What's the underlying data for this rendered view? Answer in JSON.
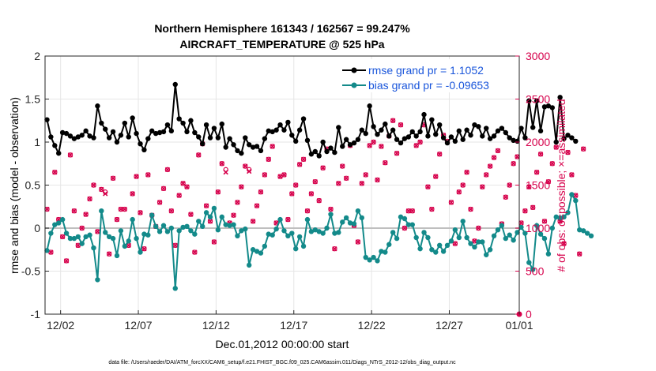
{
  "chart_data": {
    "type": "line",
    "title_line1": "Northern Hemisphere 161343 / 162567 = 99.247%",
    "title_line2": "AIRCRAFT_TEMPERATURE @ 525 hPa",
    "xlabel": "Dec.01,2012 00:00:00 start",
    "ylabel_left": "rmse and bias (model - observation)",
    "ylabel_right": "# of obs: o=possible; ×=assimilated",
    "ylim_left": [
      -1,
      2
    ],
    "ylim_right": [
      0,
      3000
    ],
    "xlim_days": [
      0.5,
      31.0
    ],
    "y_ticks_left": [
      "-1",
      "-0.5",
      "0",
      "0.5",
      "1",
      "1.5",
      "2"
    ],
    "y_ticks_right": [
      "0",
      "500",
      "1000",
      "1500",
      "2000",
      "2500",
      "3000"
    ],
    "x_ticks": [
      {
        "day": 1.5,
        "label": "12/02"
      },
      {
        "day": 6.5,
        "label": "12/07"
      },
      {
        "day": 11.5,
        "label": "12/12"
      },
      {
        "day": 16.5,
        "label": "12/17"
      },
      {
        "day": 21.5,
        "label": "12/22"
      },
      {
        "day": 26.5,
        "label": "12/27"
      },
      {
        "day": 31.0,
        "label": "01/01"
      }
    ],
    "time_step_days": 0.25,
    "series": [
      {
        "name": "rmse",
        "legend": "rmse grand pr = 1.1052",
        "color": "#000000",
        "values": [
          1.26,
          1.06,
          0.96,
          0.87,
          1.11,
          1.1,
          1.07,
          1.04,
          1.06,
          1.08,
          1.13,
          1.07,
          1.05,
          1.42,
          1.22,
          1.15,
          1.05,
          1.12,
          1.0,
          1.08,
          1.22,
          1.06,
          1.28,
          1.1,
          0.98,
          0.91,
          1.04,
          1.13,
          1.1,
          1.11,
          1.12,
          1.2,
          1.13,
          1.67,
          1.27,
          1.22,
          1.12,
          1.25,
          1.11,
          1.06,
          0.98,
          1.2,
          1.05,
          1.16,
          1.05,
          1.21,
          0.94,
          1.04,
          0.97,
          0.9,
          0.87,
          1.05,
          0.97,
          0.94,
          0.95,
          0.9,
          1.04,
          1.13,
          1.12,
          1.14,
          1.2,
          1.14,
          1.23,
          1.08,
          1.01,
          1.14,
          1.27,
          1.02,
          0.86,
          0.89,
          0.84,
          1.0,
          0.89,
          0.93,
          0.88,
          1.17,
          0.95,
          1.03,
          0.97,
          0.99,
          1.03,
          1.14,
          1.1,
          1.42,
          1.18,
          1.09,
          1.14,
          1.21,
          1.07,
          1.14,
          1.03,
          0.99,
          1.04,
          1.06,
          1.12,
          1.07,
          1.12,
          1.32,
          1.07,
          1.26,
          1.09,
          1.2,
          1.05,
          0.99,
          1.06,
          1.01,
          1.13,
          1.03,
          1.14,
          1.08,
          1.2,
          1.18,
          1.07,
          1.16,
          1.04,
          1.07,
          1.13,
          1.16,
          1.11,
          1.05,
          1.02,
          1.01,
          1.16,
          1.05,
          1.48,
          1.17,
          1.48,
          1.13,
          1.41,
          1.42,
          1.4,
          1.0,
          1.52,
          1.04,
          1.08,
          1.05,
          1.01
        ]
      },
      {
        "name": "bias",
        "legend": "bias grand pr = -0.09653",
        "color": "#138a8a",
        "values": [
          -0.26,
          -0.06,
          0.04,
          0.06,
          0.1,
          -0.06,
          -0.12,
          -0.12,
          -0.1,
          -0.18,
          -0.1,
          -0.08,
          -0.23,
          -0.6,
          0.2,
          -0.05,
          -0.1,
          -0.12,
          -0.32,
          -0.03,
          -0.21,
          -0.15,
          0.1,
          -0.12,
          -0.28,
          -0.07,
          -0.08,
          0.15,
          0.02,
          -0.04,
          0.03,
          -0.04,
          0.0,
          -0.7,
          -0.03,
          0.01,
          0.02,
          -0.03,
          -0.07,
          0.08,
          0.02,
          0.18,
          0.13,
          0.23,
          -0.02,
          0.13,
          0.04,
          0.03,
          0.04,
          -0.09,
          -0.03,
          -0.01,
          -0.43,
          -0.25,
          -0.27,
          -0.29,
          -0.21,
          -0.07,
          -0.08,
          -0.01,
          0.1,
          -0.03,
          -0.09,
          -0.06,
          -0.24,
          -0.1,
          -0.21,
          0.1,
          -0.04,
          -0.02,
          -0.04,
          -0.06,
          0.0,
          0.16,
          -0.06,
          -0.05,
          0.07,
          0.12,
          0.06,
          0.05,
          0.2,
          0.12,
          -0.34,
          -0.37,
          -0.34,
          -0.38,
          -0.27,
          -0.28,
          -0.19,
          -0.05,
          -0.12,
          0.13,
          0.11,
          0.04,
          0.04,
          -0.11,
          -0.24,
          -0.05,
          -0.11,
          -0.25,
          -0.28,
          -0.2,
          -0.27,
          -0.2,
          -0.15,
          -0.02,
          -0.11,
          0.08,
          -0.11,
          -0.18,
          -0.22,
          -0.16,
          -0.16,
          -0.31,
          -0.25,
          -0.09,
          -0.02,
          0.03,
          -0.12,
          -0.08,
          -0.14,
          -0.05,
          0.01,
          -0.06,
          -0.4,
          -0.48,
          0.03,
          -0.07,
          -0.12,
          -0.3,
          0.0,
          0.13,
          0.12,
          0.13,
          0.18,
          0.39,
          0.32,
          -0.02,
          -0.03,
          -0.06,
          -0.09
        ]
      },
      {
        "name": "obs possible",
        "color": "#d6004b",
        "axis": "right",
        "values": [
          1220,
          720,
          1650,
          1100,
          900,
          620,
          1850,
          1200,
          800,
          1000,
          1160,
          1340,
          1500,
          960,
          1450,
          1420,
          700,
          1580,
          1100,
          1220,
          1220,
          800,
          1400,
          1600,
          1180,
          760,
          1620,
          1150,
          1020,
          1300,
          1460,
          1680,
          1200,
          800,
          1380,
          1520,
          1480,
          1160,
          720,
          1850,
          1980,
          1260,
          1080,
          840,
          1420,
          1750,
          1680,
          1060,
          1150,
          1300,
          1480,
          1720,
          1680,
          1080,
          1260,
          1420,
          1620,
          1800,
          1950,
          1060,
          1600,
          1620,
          1100,
          1400,
          1500,
          1740,
          1800,
          1200,
          1400,
          1540,
          1320,
          1700,
          1920,
          1220,
          760,
          1520,
          1720,
          1580,
          1960,
          1030,
          840,
          1520,
          1620,
          1960,
          2000,
          1560,
          1950,
          1760,
          2070,
          2250,
          1870,
          2200,
          1000,
          1200,
          1200,
          1960,
          2000,
          2200,
          1480,
          1220,
          1600,
          1860,
          2080,
          2010,
          1300,
          820,
          1420,
          1500,
          1650,
          1220,
          850,
          1000,
          1480,
          1620,
          1720,
          1820,
          1900,
          1050,
          1360,
          1500,
          1750,
          1830,
          1060,
          1200,
          1480,
          1240,
          1650,
          1860,
          1080,
          1540,
          1750,
          1940,
          1080,
          820,
          1880,
          1620,
          1380,
          700,
          1920
        ]
      },
      {
        "name": "obs assimilated",
        "color": "#d6004b",
        "axis": "right",
        "values": [
          1220,
          720,
          1650,
          1100,
          900,
          620,
          1850,
          1200,
          800,
          1000,
          1160,
          1340,
          1500,
          960,
          1450,
          1400,
          700,
          1580,
          1100,
          1220,
          1220,
          800,
          1400,
          1600,
          1180,
          760,
          1620,
          1150,
          1020,
          1300,
          1460,
          1680,
          1200,
          800,
          1380,
          1520,
          1480,
          1160,
          720,
          1850,
          1980,
          1260,
          1080,
          840,
          1420,
          1750,
          1650,
          1060,
          1150,
          1300,
          1480,
          1720,
          1660,
          1080,
          1260,
          1420,
          1620,
          1800,
          1950,
          1060,
          1600,
          1620,
          1100,
          1400,
          1500,
          1740,
          1800,
          1200,
          1400,
          1540,
          1320,
          1700,
          1920,
          1220,
          760,
          1520,
          1720,
          1580,
          1960,
          1030,
          840,
          1520,
          1620,
          1960,
          2000,
          1560,
          1950,
          1760,
          2070,
          2250,
          1870,
          2200,
          1000,
          1200,
          1200,
          1960,
          2000,
          2200,
          1480,
          1220,
          1600,
          1860,
          2080,
          2010,
          1300,
          820,
          1420,
          1500,
          1650,
          1220,
          850,
          1000,
          1480,
          1620,
          1720,
          1820,
          1900,
          1050,
          1360,
          1500,
          1750,
          1830,
          1060,
          1200,
          1480,
          1240,
          1650,
          1860,
          1080,
          1540,
          1750,
          1940,
          1080,
          820,
          1880,
          1620,
          1380,
          700,
          1920
        ]
      }
    ],
    "zero_line_color": "#bfbfbf"
  },
  "footnote": "data file: /Users/raeder/DAI/ATM_forcXX/CAM6_setup/f.e21.FHIST_BGC.f09_025.CAM6assim.011/Diags_NTrS_2012-12/obs_diag_output.nc"
}
